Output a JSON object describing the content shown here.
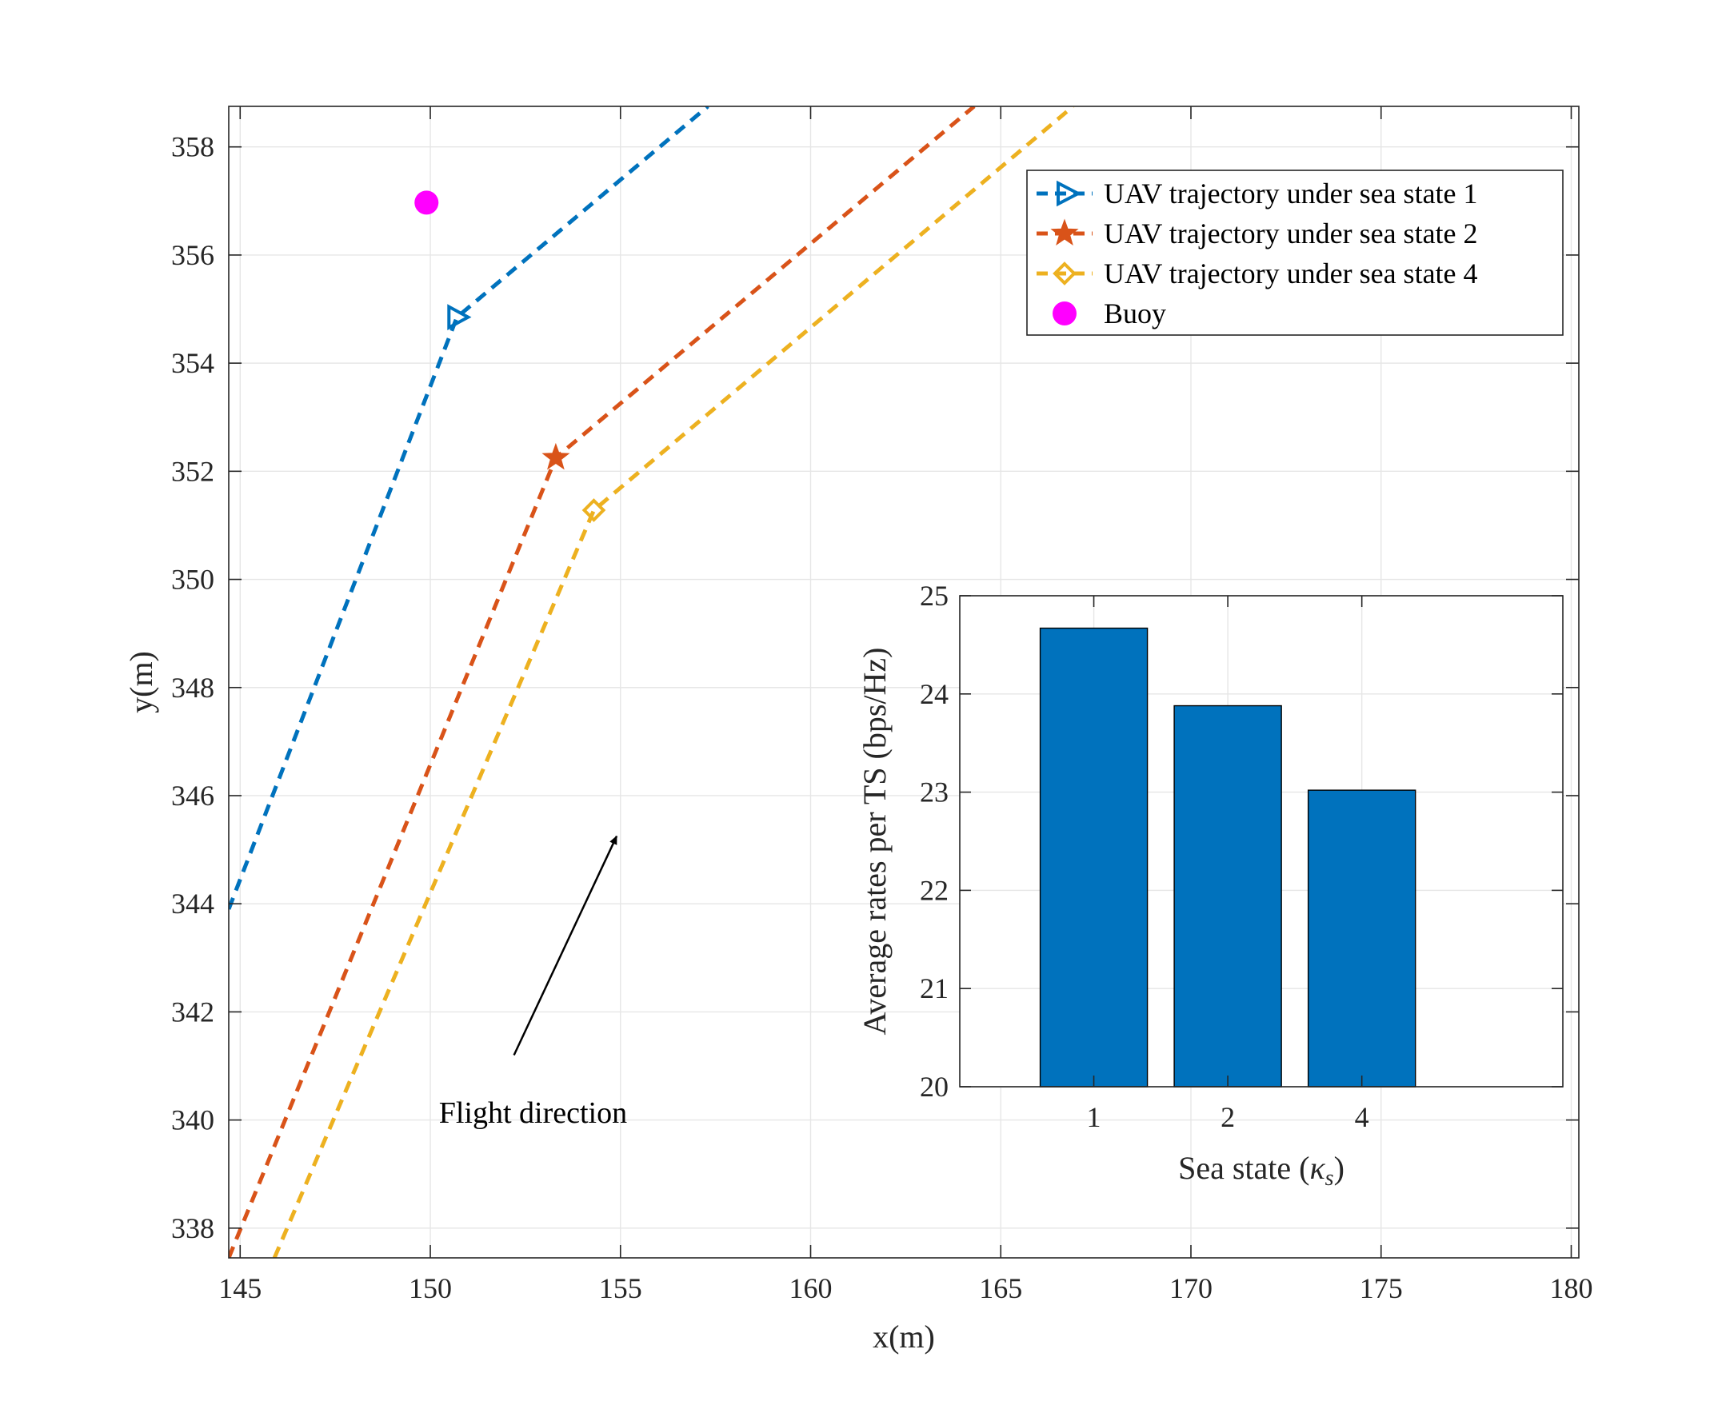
{
  "chart_data": [
    {
      "type": "line",
      "xlabel": "x(m)",
      "ylabel": "y(m)",
      "xlim": [
        144.7,
        180.2
      ],
      "ylim": [
        337.45,
        358.75
      ],
      "xticks": [
        145,
        150,
        155,
        160,
        165,
        170,
        175,
        180
      ],
      "yticks": [
        338,
        340,
        342,
        344,
        346,
        348,
        350,
        352,
        354,
        356,
        358
      ],
      "grid": true,
      "legend_position": "top-right",
      "series": [
        {
          "name": "UAV trajectory under sea state 1",
          "color": "#0072BD",
          "line_style": "dashed",
          "marker": "right-triangle",
          "x": [
            144.7,
            150.7,
            157.3
          ],
          "y": [
            343.9,
            354.85,
            358.75
          ],
          "marker_points": [
            [
              150.7,
              354.85
            ]
          ]
        },
        {
          "name": "UAV trajectory under sea state 2",
          "color": "#D95319",
          "line_style": "dashed",
          "marker": "pentagram",
          "x": [
            144.7,
            153.3,
            164.3
          ],
          "y": [
            337.45,
            352.25,
            358.75
          ],
          "marker_points": [
            [
              153.3,
              352.25
            ]
          ]
        },
        {
          "name": "UAV trajectory under sea state 4",
          "color": "#EDB120",
          "line_style": "dashed",
          "marker": "diamond",
          "x": [
            145.9,
            154.3,
            166.9
          ],
          "y": [
            337.45,
            351.28,
            358.75
          ],
          "marker_points": [
            [
              154.3,
              351.28
            ]
          ]
        },
        {
          "name": "Buoy",
          "color": "#FF00FF",
          "line_style": "none",
          "marker": "filled-circle",
          "x": [
            149.9
          ],
          "y": [
            356.97
          ]
        }
      ],
      "annotations": [
        {
          "text": "Flight direction",
          "x": 152.7,
          "y": 339.95
        },
        {
          "arrow_from": [
            152.2,
            341.2
          ],
          "arrow_to": [
            154.9,
            345.25
          ],
          "color": "#000000"
        }
      ]
    },
    {
      "type": "bar",
      "categories": [
        "1",
        "2",
        "4"
      ],
      "values": [
        24.67,
        23.88,
        23.02
      ],
      "bar_color": "#0072BD",
      "xlabel": "Sea state (κs)",
      "xlabel_main": "Sea state (",
      "xlabel_kappa": "κ",
      "xlabel_sub": "s",
      "xlabel_close": ")",
      "ylabel": "Average rates per TS (bps/Hz)",
      "ylim": [
        20,
        25
      ],
      "yticks": [
        20,
        21,
        22,
        23,
        24,
        25
      ],
      "xlim": [
        0,
        4.5
      ],
      "category_positions": [
        1,
        2,
        3
      ],
      "grid": true
    }
  ]
}
